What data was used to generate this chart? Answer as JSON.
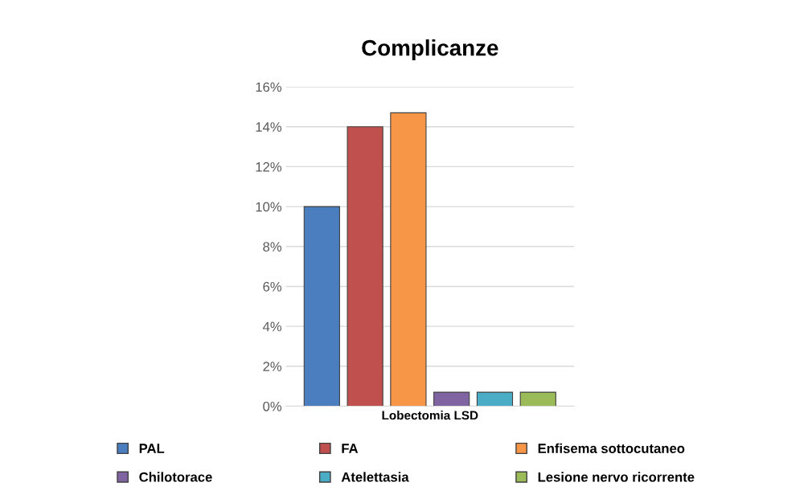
{
  "chart_data": {
    "type": "bar",
    "title": "Complicanze",
    "categories": [
      "Lobectomia LSD"
    ],
    "series": [
      {
        "name": "PAL",
        "color": "#4a7ebf",
        "values": [
          10
        ]
      },
      {
        "name": "FA",
        "color": "#c0504d",
        "values": [
          14
        ]
      },
      {
        "name": "Enfisema sottocutaneo",
        "color": "#f79646",
        "values": [
          14.7
        ]
      },
      {
        "name": "Chilotorace",
        "color": "#8064a2",
        "values": [
          0.7
        ]
      },
      {
        "name": "Atelettasia",
        "color": "#4bacc6",
        "values": [
          0.7
        ]
      },
      {
        "name": "Lesione nervo ricorrente",
        "color": "#9bbb59",
        "values": [
          0.7
        ]
      }
    ],
    "ylim": [
      0,
      16
    ],
    "yticks": [
      {
        "value": 0,
        "label": "0%"
      },
      {
        "value": 2,
        "label": "2%"
      },
      {
        "value": 4,
        "label": "4%"
      },
      {
        "value": 6,
        "label": "6%"
      },
      {
        "value": 8,
        "label": "8%"
      },
      {
        "value": 10,
        "label": "10%"
      },
      {
        "value": 12,
        "label": "12%"
      },
      {
        "value": 14,
        "label": "14%"
      },
      {
        "value": 16,
        "label": "16%"
      }
    ],
    "grid": "y",
    "legend": "bottom"
  }
}
